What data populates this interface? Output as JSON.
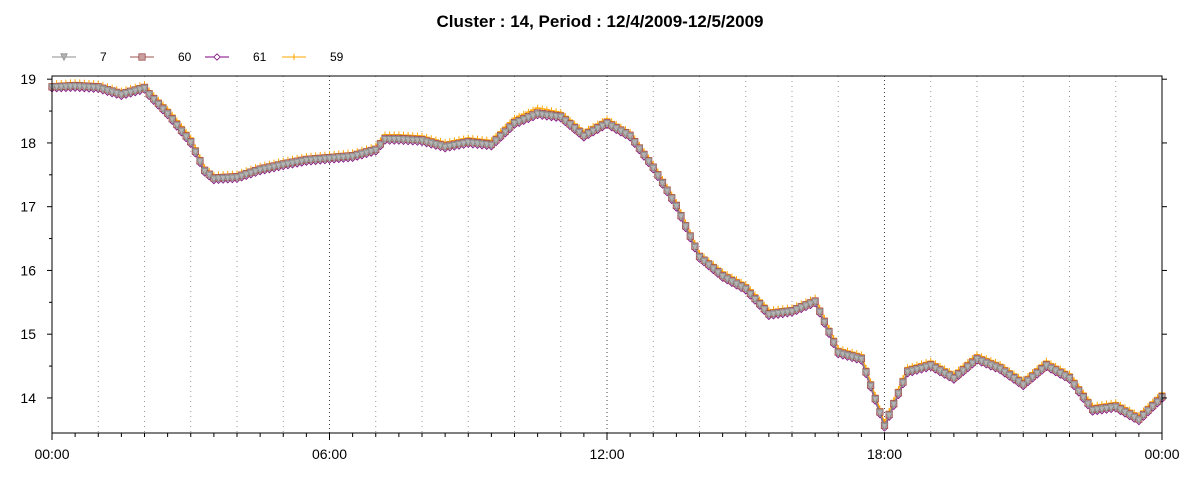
{
  "chart_data": {
    "type": "line",
    "title": "Cluster : 14, Period : 12/4/2009-12/5/2009",
    "xlabel": "",
    "ylabel": "",
    "x_ticks": [
      "00:00",
      "06:00",
      "12:00",
      "18:00",
      "00:00"
    ],
    "x_tick_hours": [
      0,
      6,
      12,
      18,
      24
    ],
    "y_ticks": [
      14,
      15,
      16,
      17,
      18,
      19
    ],
    "xlim": [
      0,
      24
    ],
    "ylim": [
      13.45,
      19.05
    ],
    "grid": "dotted",
    "legend_position": "top-left",
    "series": [
      {
        "name": "7",
        "color": "#8c8c8c",
        "marker": "triangle-down",
        "points": [
          [
            0,
            18.87
          ],
          [
            0.5,
            18.88
          ],
          [
            1,
            18.86
          ],
          [
            1.5,
            18.75
          ],
          [
            2,
            18.85
          ],
          [
            2.1,
            18.75
          ],
          [
            2.5,
            18.45
          ],
          [
            3,
            18.0
          ],
          [
            3.3,
            17.55
          ],
          [
            3.5,
            17.43
          ],
          [
            4,
            17.45
          ],
          [
            4.5,
            17.57
          ],
          [
            5,
            17.65
          ],
          [
            5.5,
            17.72
          ],
          [
            6,
            17.75
          ],
          [
            6.5,
            17.78
          ],
          [
            7,
            17.88
          ],
          [
            7.2,
            18.05
          ],
          [
            7.5,
            18.05
          ],
          [
            8,
            18.03
          ],
          [
            8.5,
            17.93
          ],
          [
            9,
            18.0
          ],
          [
            9.5,
            17.96
          ],
          [
            10,
            18.3
          ],
          [
            10.5,
            18.45
          ],
          [
            11,
            18.4
          ],
          [
            11.5,
            18.1
          ],
          [
            12,
            18.3
          ],
          [
            12.5,
            18.1
          ],
          [
            13,
            17.6
          ],
          [
            13.5,
            17.0
          ],
          [
            14,
            16.2
          ],
          [
            14.5,
            15.9
          ],
          [
            15,
            15.7
          ],
          [
            15.5,
            15.3
          ],
          [
            16,
            15.35
          ],
          [
            16.5,
            15.5
          ],
          [
            17,
            14.7
          ],
          [
            17.5,
            14.6
          ],
          [
            18,
            13.55
          ],
          [
            18.5,
            14.4
          ],
          [
            19,
            14.5
          ],
          [
            19.5,
            14.3
          ],
          [
            20,
            14.6
          ],
          [
            20.5,
            14.45
          ],
          [
            21,
            14.2
          ],
          [
            21.5,
            14.5
          ],
          [
            22,
            14.3
          ],
          [
            22.5,
            13.8
          ],
          [
            23,
            13.85
          ],
          [
            23.5,
            13.65
          ],
          [
            24,
            14.0
          ]
        ]
      },
      {
        "name": "60",
        "color": "#a05050",
        "marker": "square",
        "points": [
          [
            0,
            18.88
          ],
          [
            0.5,
            18.9
          ],
          [
            1,
            18.88
          ],
          [
            1.5,
            18.77
          ],
          [
            2,
            18.87
          ],
          [
            2.1,
            18.77
          ],
          [
            2.5,
            18.47
          ],
          [
            3,
            18.02
          ],
          [
            3.3,
            17.57
          ],
          [
            3.5,
            17.45
          ],
          [
            4,
            17.47
          ],
          [
            4.5,
            17.59
          ],
          [
            5,
            17.67
          ],
          [
            5.5,
            17.74
          ],
          [
            6,
            17.77
          ],
          [
            6.5,
            17.8
          ],
          [
            7,
            17.9
          ],
          [
            7.2,
            18.07
          ],
          [
            7.5,
            18.07
          ],
          [
            8,
            18.05
          ],
          [
            8.5,
            17.95
          ],
          [
            9,
            18.02
          ],
          [
            9.5,
            17.98
          ],
          [
            10,
            18.32
          ],
          [
            10.5,
            18.47
          ],
          [
            11,
            18.42
          ],
          [
            11.5,
            18.12
          ],
          [
            12,
            18.32
          ],
          [
            12.5,
            18.12
          ],
          [
            13,
            17.62
          ],
          [
            13.5,
            17.02
          ],
          [
            14,
            16.22
          ],
          [
            14.5,
            15.92
          ],
          [
            15,
            15.72
          ],
          [
            15.5,
            15.32
          ],
          [
            16,
            15.37
          ],
          [
            16.5,
            15.52
          ],
          [
            17,
            14.72
          ],
          [
            17.5,
            14.62
          ],
          [
            18,
            13.57
          ],
          [
            18.5,
            14.42
          ],
          [
            19,
            14.52
          ],
          [
            19.5,
            14.32
          ],
          [
            20,
            14.62
          ],
          [
            20.5,
            14.47
          ],
          [
            21,
            14.22
          ],
          [
            21.5,
            14.52
          ],
          [
            22,
            14.32
          ],
          [
            22.5,
            13.82
          ],
          [
            23,
            13.87
          ],
          [
            23.5,
            13.67
          ],
          [
            24,
            14.02
          ]
        ]
      },
      {
        "name": "61",
        "color": "#800080",
        "marker": "diamond",
        "points": [
          [
            0,
            18.85
          ],
          [
            0.5,
            18.86
          ],
          [
            1,
            18.84
          ],
          [
            1.5,
            18.73
          ],
          [
            2,
            18.83
          ],
          [
            2.1,
            18.73
          ],
          [
            2.5,
            18.43
          ],
          [
            3,
            17.98
          ],
          [
            3.3,
            17.53
          ],
          [
            3.5,
            17.41
          ],
          [
            4,
            17.43
          ],
          [
            4.5,
            17.55
          ],
          [
            5,
            17.63
          ],
          [
            5.5,
            17.7
          ],
          [
            6,
            17.73
          ],
          [
            6.5,
            17.76
          ],
          [
            7,
            17.86
          ],
          [
            7.2,
            18.03
          ],
          [
            7.5,
            18.03
          ],
          [
            8,
            18.01
          ],
          [
            8.5,
            17.91
          ],
          [
            9,
            17.98
          ],
          [
            9.5,
            17.94
          ],
          [
            10,
            18.28
          ],
          [
            10.5,
            18.43
          ],
          [
            11,
            18.38
          ],
          [
            11.5,
            18.08
          ],
          [
            12,
            18.28
          ],
          [
            12.5,
            18.08
          ],
          [
            13,
            17.58
          ],
          [
            13.5,
            16.98
          ],
          [
            14,
            16.18
          ],
          [
            14.5,
            15.88
          ],
          [
            15,
            15.68
          ],
          [
            15.5,
            15.28
          ],
          [
            16,
            15.33
          ],
          [
            16.5,
            15.48
          ],
          [
            17,
            14.68
          ],
          [
            17.5,
            14.58
          ],
          [
            18,
            13.53
          ],
          [
            18.5,
            14.38
          ],
          [
            19,
            14.48
          ],
          [
            19.5,
            14.28
          ],
          [
            20,
            14.58
          ],
          [
            20.5,
            14.43
          ],
          [
            21,
            14.18
          ],
          [
            21.5,
            14.48
          ],
          [
            22,
            14.28
          ],
          [
            22.5,
            13.78
          ],
          [
            23,
            13.83
          ],
          [
            23.5,
            13.63
          ],
          [
            24,
            13.98
          ]
        ]
      },
      {
        "name": "59",
        "color": "#ffa500",
        "marker": "plus",
        "points": [
          [
            0,
            18.93
          ],
          [
            0.5,
            18.95
          ],
          [
            1,
            18.93
          ],
          [
            1.5,
            18.82
          ],
          [
            2,
            18.92
          ],
          [
            2.1,
            18.82
          ],
          [
            2.5,
            18.53
          ],
          [
            3,
            18.08
          ],
          [
            3.3,
            17.62
          ],
          [
            3.5,
            17.5
          ],
          [
            4,
            17.52
          ],
          [
            4.5,
            17.64
          ],
          [
            5,
            17.72
          ],
          [
            5.5,
            17.79
          ],
          [
            6,
            17.82
          ],
          [
            6.5,
            17.85
          ],
          [
            7,
            17.95
          ],
          [
            7.2,
            18.13
          ],
          [
            7.5,
            18.13
          ],
          [
            8,
            18.11
          ],
          [
            8.5,
            18.01
          ],
          [
            9,
            18.08
          ],
          [
            9.5,
            18.04
          ],
          [
            10,
            18.39
          ],
          [
            10.5,
            18.55
          ],
          [
            11,
            18.48
          ],
          [
            11.5,
            18.18
          ],
          [
            12,
            18.38
          ],
          [
            12.5,
            18.17
          ],
          [
            13,
            17.67
          ],
          [
            13.5,
            17.07
          ],
          [
            14,
            16.27
          ],
          [
            14.5,
            15.98
          ],
          [
            15,
            15.78
          ],
          [
            15.5,
            15.38
          ],
          [
            16,
            15.42
          ],
          [
            16.5,
            15.57
          ],
          [
            17,
            14.78
          ],
          [
            17.5,
            14.68
          ],
          [
            18,
            13.62
          ],
          [
            18.5,
            14.48
          ],
          [
            19,
            14.58
          ],
          [
            19.5,
            14.38
          ],
          [
            20,
            14.68
          ],
          [
            20.5,
            14.53
          ],
          [
            21,
            14.28
          ],
          [
            21.5,
            14.58
          ],
          [
            22,
            14.38
          ],
          [
            22.5,
            13.88
          ],
          [
            23,
            13.93
          ],
          [
            23.5,
            13.73
          ],
          [
            24,
            14.08
          ]
        ]
      }
    ]
  }
}
